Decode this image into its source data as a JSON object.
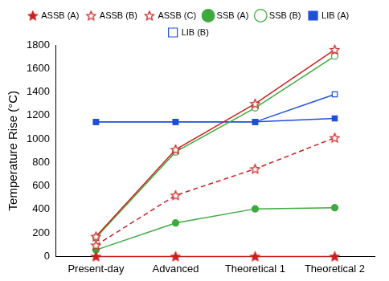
{
  "chart_data": {
    "type": "line",
    "y_label": "Temperature Rise (°C)",
    "categories": [
      "Present-day",
      "Advanced",
      "Theoretical 1",
      "Theoretical 2"
    ],
    "ylim": [
      0,
      1800
    ],
    "yticks": [
      0,
      200,
      400,
      600,
      800,
      1000,
      1200,
      1400,
      1600,
      1800
    ],
    "grid": false,
    "legend": "top",
    "series": [
      {
        "name": "ASSB (A)",
        "color": "#cc1f1f",
        "marker": "star",
        "line_style": "solid",
        "values": [
          0,
          0,
          0,
          0
        ]
      },
      {
        "name": "ASSB (B)",
        "color": "#cc1f1f",
        "marker": "star-open",
        "line_style": "solid",
        "values": [
          170,
          910,
          1300,
          1760
        ]
      },
      {
        "name": "ASSB (C)",
        "color": "#cc1f1f",
        "marker": "star-open",
        "line_style": "dashed",
        "values": [
          95,
          520,
          745,
          1010
        ]
      },
      {
        "name": "SSB (A)",
        "color": "#3daa3d",
        "marker": "circle",
        "line_style": "solid",
        "values": [
          55,
          285,
          405,
          415
        ]
      },
      {
        "name": "SSB (B)",
        "color": "#3daa3d",
        "marker": "circle-open",
        "line_style": "solid",
        "values": [
          160,
          890,
          1265,
          1705
        ]
      },
      {
        "name": "LIB (A)",
        "color": "#1e4fd8",
        "marker": "square",
        "line_style": "solid",
        "values": [
          1145,
          1145,
          1145,
          1175
        ]
      },
      {
        "name": "LIB (B)",
        "color": "#1e4fd8",
        "marker": "square-open",
        "line_style": "solid",
        "values": [
          1145,
          1145,
          1145,
          1380
        ]
      }
    ]
  }
}
